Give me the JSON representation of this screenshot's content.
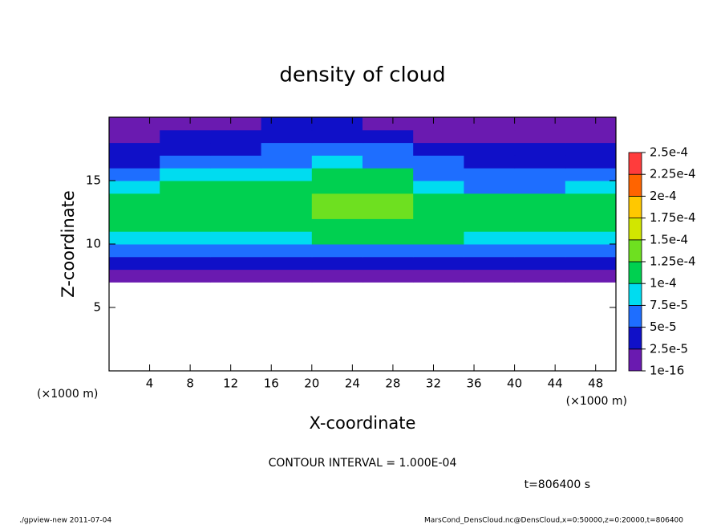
{
  "chart_data": {
    "type": "heatmap",
    "title": "density of cloud",
    "xlabel": "X-coordinate",
    "ylabel": "Z-coordinate",
    "x_unit": "(×1000 m)",
    "y_unit": "(×1000 m)",
    "annotation": "CONTOUR INTERVAL = 1.000E-04",
    "time_label": "t=806400 s",
    "footer_left": "./gpview-new  2011-07-04",
    "footer_right": "MarsCond_DensCloud.nc@DensCloud,x=0:50000,z=0:20000,t=806400",
    "xlim": [
      0,
      50
    ],
    "ylim": [
      0,
      20
    ],
    "xticks": [
      4,
      8,
      12,
      16,
      20,
      24,
      28,
      32,
      36,
      40,
      44,
      48
    ],
    "yticks": [
      5,
      10,
      15
    ],
    "xbins": [
      0,
      5,
      10,
      15,
      20,
      25,
      30,
      35,
      40,
      45,
      50
    ],
    "ybins": [
      7,
      8,
      9,
      10,
      11,
      12,
      13,
      14,
      15,
      16,
      17,
      18,
      19,
      20
    ],
    "values": [
      [
        1.5e-05,
        1.5e-05,
        1.5e-05,
        1.5e-05,
        1.5e-05,
        1.5e-05,
        1.5e-05,
        1.5e-05,
        1.5e-05,
        1.5e-05
      ],
      [
        3.5e-05,
        3.5e-05,
        3.5e-05,
        3.5e-05,
        3.5e-05,
        3.5e-05,
        3.5e-05,
        3.5e-05,
        3.5e-05,
        3.5e-05
      ],
      [
        6e-05,
        6e-05,
        6.5e-05,
        7e-05,
        7e-05,
        7e-05,
        7e-05,
        6.5e-05,
        6e-05,
        6e-05
      ],
      [
        9e-05,
        9.5e-05,
        9.5e-05,
        9.5e-05,
        0.0001,
        0.0001,
        0.0001,
        9.5e-05,
        9e-05,
        8.5e-05
      ],
      [
        0.000105,
        0.00011,
        0.00011,
        0.00011,
        0.00012,
        0.00012,
        0.000115,
        0.00011,
        0.00011,
        0.000105
      ],
      [
        0.00011,
        0.00011,
        0.00011,
        0.00011,
        0.000125,
        0.00013,
        0.00012,
        0.00011,
        0.00011,
        0.00011
      ],
      [
        0.000105,
        0.00011,
        0.000105,
        0.00011,
        0.000125,
        0.00013,
        0.000115,
        0.000105,
        0.000105,
        0.000105
      ],
      [
        9e-05,
        0.0001,
        0.0001,
        0.0001,
        0.00011,
        0.00011,
        9e-05,
        7e-05,
        7e-05,
        8e-05
      ],
      [
        6e-05,
        8e-05,
        8.5e-05,
        9e-05,
        0.0001,
        0.0001,
        7e-05,
        5e-05,
        5e-05,
        5e-05
      ],
      [
        4e-05,
        5e-05,
        6e-05,
        7e-05,
        8e-05,
        7e-05,
        5e-05,
        4e-05,
        4e-05,
        4e-05
      ],
      [
        3e-05,
        3.5e-05,
        4.5e-05,
        6e-05,
        6e-05,
        5e-05,
        3.5e-05,
        2.5e-05,
        2.5e-05,
        3e-05
      ],
      [
        1.5e-05,
        2.5e-05,
        3e-05,
        4e-05,
        4e-05,
        3e-05,
        2e-05,
        1.5e-05,
        1.5e-05,
        2e-05
      ],
      [
        1e-05,
        1.5e-05,
        2e-05,
        2.5e-05,
        2.5e-05,
        2e-05,
        1.5e-05,
        1e-05,
        1e-05,
        1.5e-05
      ]
    ],
    "colorbar": {
      "ticks": [
        {
          "value": 1e-16,
          "label": "1e-16"
        },
        {
          "value": 2.5e-05,
          "label": "2.5e-5"
        },
        {
          "value": 5e-05,
          "label": "5e-5"
        },
        {
          "value": 7.5e-05,
          "label": "7.5e-5"
        },
        {
          "value": 0.0001,
          "label": "1e-4"
        },
        {
          "value": 0.000125,
          "label": "1.25e-4"
        },
        {
          "value": 0.00015,
          "label": "1.5e-4"
        },
        {
          "value": 0.000175,
          "label": "1.75e-4"
        },
        {
          "value": 0.0002,
          "label": "2e-4"
        },
        {
          "value": 0.000225,
          "label": "2.25e-4"
        },
        {
          "value": 0.00025,
          "label": "2.5e-4"
        }
      ],
      "colors": [
        "#6a1ab0",
        "#1010c8",
        "#1e6eff",
        "#00dcf0",
        "#00d050",
        "#6ee020",
        "#d2e600",
        "#ffc800",
        "#ff6400",
        "#ff3c3c"
      ]
    }
  }
}
